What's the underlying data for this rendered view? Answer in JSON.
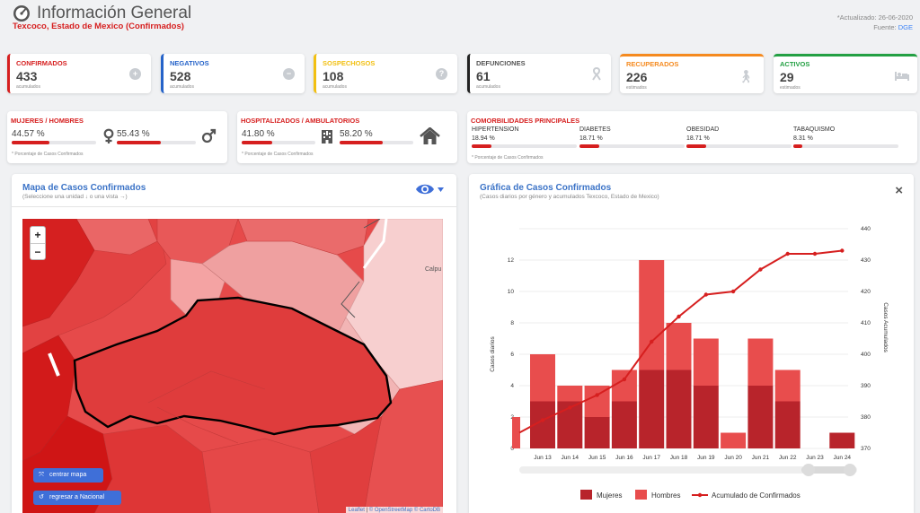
{
  "header": {
    "title": "Información General",
    "subtitle": "Texcoco, Estado de Mexico (Confirmados)",
    "updated": "*Actualizado: 26-06-2020",
    "source_label": "Fuente:",
    "source_value": "DGE"
  },
  "stats": [
    {
      "label": "CONFIRMADOS",
      "value": "433",
      "sub": "acumulados",
      "color": "#d61f1f",
      "icon": "plus-circle-icon"
    },
    {
      "label": "NEGATIVOS",
      "value": "528",
      "sub": "acumulados",
      "color": "#2563c9",
      "icon": "minus-circle-icon"
    },
    {
      "label": "SOSPECHOSOS",
      "value": "108",
      "sub": "acumulados",
      "color": "#f2c012",
      "icon": "question-circle-icon"
    },
    {
      "label": "DEFUNCIONES",
      "value": "61",
      "sub": "acumulados",
      "color": "#222222",
      "icon": "ribbon-icon"
    },
    {
      "label": "RECUPERADOS",
      "value": "226",
      "sub": "estimados",
      "color": "#f58a1f",
      "icon": "walking-person-icon"
    },
    {
      "label": "ACTIVOS",
      "value": "29",
      "sub": "estimados",
      "color": "#23a043",
      "icon": "bed-icon"
    }
  ],
  "gender": {
    "title": "MUJERES / HOMBRES",
    "women_pct": "44.57 %",
    "women_value": 44.57,
    "men_pct": "55.43 %",
    "men_value": 55.43,
    "note": "* Porcentaje de Casos Confirmados"
  },
  "hospital": {
    "title": "HOSPITALIZADOS / AMBULATORIOS",
    "hosp_pct": "41.80 %",
    "hosp_value": 41.8,
    "amb_pct": "58.20 %",
    "amb_value": 58.2,
    "note": "* Porcentaje de Casos Confirmados"
  },
  "comorbidities": {
    "title": "COMORBILIDADES PRINCIPALES",
    "items": [
      {
        "label": "HIPERTENSION",
        "pct": "18.94 %",
        "value": 18.94
      },
      {
        "label": "DIABETES",
        "pct": "18.71 %",
        "value": 18.71
      },
      {
        "label": "OBESIDAD",
        "pct": "18.71 %",
        "value": 18.71
      },
      {
        "label": "TABAQUISMO",
        "pct": "8.31 %",
        "value": 8.31
      }
    ],
    "note": "* Porcentaje de Casos Confirmados"
  },
  "map_panel": {
    "title": "Mapa de Casos Confirmados",
    "subtitle": "(Seleccione una unidad ↓ o una vista →)",
    "zoom_in": "+",
    "zoom_out": "−",
    "center_btn": "centrar mapa",
    "back_btn": "regresar a Nacional",
    "attribution_leaflet": "Leaflet",
    "attribution_osm": "© OpenStreetMap",
    "attribution_carto": "© CartoDB",
    "map_place": "Calpu"
  },
  "chart_panel": {
    "title": "Gráfica de Casos Confirmados",
    "subtitle": "(Casos diarios por género y acumulados Texcoco, Estado de Mexico)",
    "close": "×"
  },
  "chart_data": {
    "type": "bar",
    "categories": [
      "Jun 13",
      "Jun 14",
      "Jun 15",
      "Jun 16",
      "Jun 17",
      "Jun 18",
      "Jun 19",
      "Jun 20",
      "Jun 21",
      "Jun 22",
      "Jun 23",
      "Jun 24"
    ],
    "series": [
      {
        "name": "Mujeres",
        "kind": "bar",
        "axis": "left",
        "color": "#b8242b",
        "values": [
          3,
          3,
          2,
          3,
          5,
          5,
          4,
          0,
          4,
          3,
          0,
          1
        ]
      },
      {
        "name": "Hombres",
        "kind": "bar",
        "axis": "left",
        "color": "#e84d4d",
        "values": [
          3,
          1,
          2,
          2,
          7,
          3,
          3,
          1,
          3,
          2,
          0,
          0
        ]
      },
      {
        "name": "Acumulado de Confirmados",
        "kind": "line",
        "axis": "right",
        "color": "#d61f1f",
        "values": [
          379,
          383,
          387,
          392,
          404,
          412,
          419,
          420,
          427,
          432,
          432,
          433
        ]
      }
    ],
    "partial_bar_value": 2,
    "partial_line_value": 375,
    "ylabel": "Casos diarios",
    "y2label": "Casos Acumulados",
    "ylim": [
      0,
      12
    ],
    "y2lim": [
      370,
      440
    ],
    "yticks": [
      0,
      2,
      4,
      6,
      8,
      10,
      12
    ],
    "y2ticks": [
      370,
      380,
      390,
      400,
      410,
      420,
      430,
      440
    ],
    "legend_position": "bottom",
    "grid": true
  }
}
